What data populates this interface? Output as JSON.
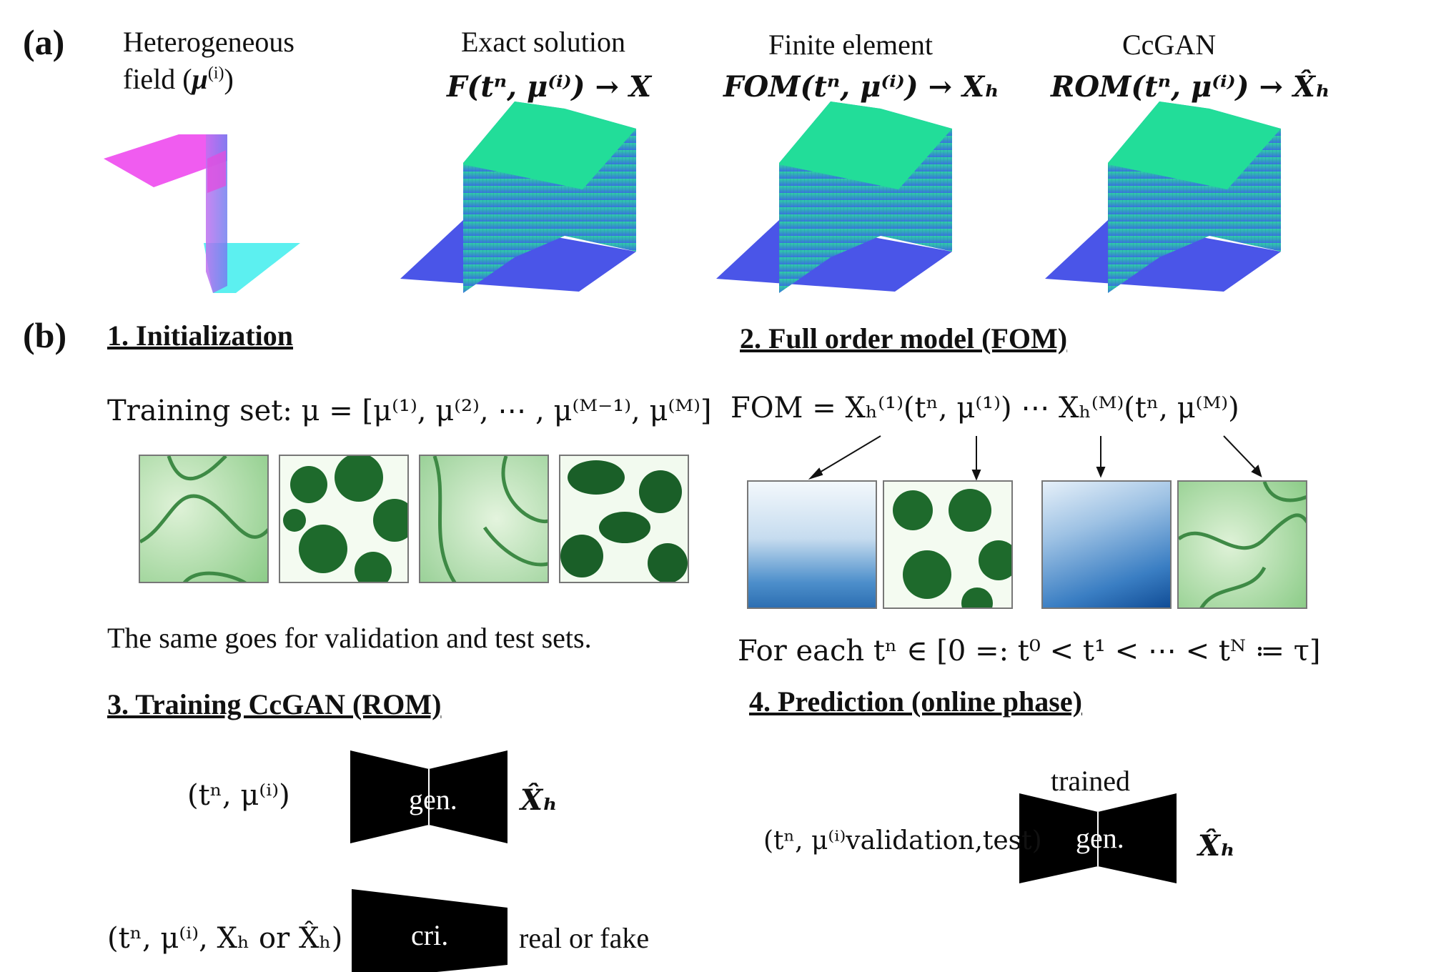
{
  "panel_a": {
    "label": "(a)",
    "col1_line1": "Heterogeneous",
    "col1_line2": "field (",
    "col1_sym": "μ",
    "col1_sup": "(i)",
    "col1_close": ")",
    "col2_title": "Exact solution",
    "col2_expr": "F(tⁿ, μ⁽ⁱ⁾) → X",
    "col3_title": "Finite element",
    "col3_expr": "FOM(tⁿ, μ⁽ⁱ⁾) → Xₕ",
    "col4_title": "CcGAN",
    "col4_expr": "ROM(tⁿ, μ⁽ⁱ⁾) → X̂ₕ"
  },
  "panel_b": {
    "label": "(b)",
    "sec1_title": "1. Initialization",
    "training_set": "Training set: μ = [μ⁽¹⁾, μ⁽²⁾, ⋯ , μ⁽ᴹ⁻¹⁾, μ⁽ᴹ⁾]",
    "same_goes": "The same goes for validation and test sets.",
    "sec2_title": "2. Full order model (FOM)",
    "fom_expr": "FOM = Xₕ⁽¹⁾(tⁿ, μ⁽¹⁾)  ⋯ Xₕ⁽ᴹ⁾(tⁿ, μ⁽ᴹ⁾)",
    "for_each": "For each tⁿ ∈ [0 =: t⁰ < t¹ < ⋯ < tᴺ ≔  τ]",
    "sec3_title": "3. Training CcGAN (ROM)",
    "gen_input": "(tⁿ, μ⁽ⁱ⁾)",
    "gen_label": "gen.",
    "gen_output": "X̂ₕ",
    "cri_input": "(tⁿ, μ⁽ⁱ⁾, Xₕ or X̂ₕ)",
    "cri_label": "cri.",
    "cri_output": "real or fake",
    "sec4_title": "4. Prediction (online phase)",
    "trained": "trained",
    "pred_input": "(tⁿ, μ⁽ⁱ⁾validation,test)",
    "pred_gen_label": "gen.",
    "pred_output": "X̂ₕ"
  },
  "colors": {
    "magenta": "#f05cf0",
    "cyan": "#5cf0f0",
    "green_top": "#22dd99",
    "blue_side": "#3a7fd8",
    "blue_base": "#4a55e8",
    "field_green": "#2f8a3c",
    "fom_blue": "#2a6fb8"
  }
}
